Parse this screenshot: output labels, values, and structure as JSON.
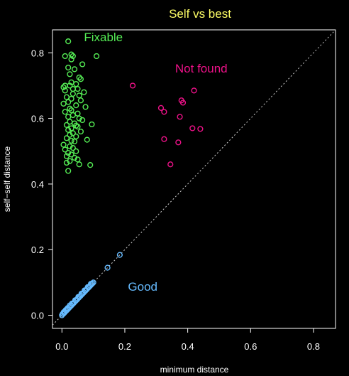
{
  "colors": {
    "background": "#000000",
    "foreground": "#ffffff",
    "title": "#ffff66",
    "fixable": "#55ee55",
    "not_found": "#ee1188",
    "good": "#66bbff",
    "reference_line": "#cccccc"
  },
  "chart_data": {
    "type": "scatter",
    "title": "Self vs best",
    "xlabel": "minimum distance",
    "ylabel": "self−self distance",
    "xlim": [
      -0.03,
      0.87
    ],
    "ylim": [
      -0.04,
      0.87
    ],
    "xticks": [
      0.0,
      0.2,
      0.4,
      0.6,
      0.8
    ],
    "xtick_labels": [
      "0.0",
      "0.2",
      "0.4",
      "0.6",
      "0.8"
    ],
    "yticks": [
      0.0,
      0.2,
      0.4,
      0.6,
      0.8
    ],
    "ytick_labels": [
      "0.0",
      "0.2",
      "0.4",
      "0.6",
      "0.8"
    ],
    "grid": false,
    "marker": "open-circle",
    "reference_line": {
      "type": "y=x",
      "style": "dotted"
    },
    "annotations": [
      {
        "text": "Fixable",
        "x": 0.07,
        "y": 0.835,
        "series": "Fixable"
      },
      {
        "text": "Not found",
        "x": 0.36,
        "y": 0.74,
        "series": "Not found"
      },
      {
        "text": "Good",
        "x": 0.21,
        "y": 0.075,
        "series": "Good"
      }
    ],
    "series": [
      {
        "name": "Fixable",
        "points": [
          [
            0.02,
            0.835
          ],
          [
            0.01,
            0.79
          ],
          [
            0.03,
            0.795
          ],
          [
            0.035,
            0.79
          ],
          [
            0.03,
            0.78
          ],
          [
            0.11,
            0.79
          ],
          [
            0.065,
            0.765
          ],
          [
            0.02,
            0.755
          ],
          [
            0.04,
            0.75
          ],
          [
            0.025,
            0.735
          ],
          [
            0.055,
            0.725
          ],
          [
            0.06,
            0.72
          ],
          [
            0.03,
            0.71
          ],
          [
            0.045,
            0.705
          ],
          [
            0.01,
            0.7
          ],
          [
            0.025,
            0.7
          ],
          [
            0.005,
            0.695
          ],
          [
            0.035,
            0.69
          ],
          [
            0.05,
            0.69
          ],
          [
            0.01,
            0.685
          ],
          [
            0.07,
            0.68
          ],
          [
            0.035,
            0.675
          ],
          [
            0.055,
            0.67
          ],
          [
            0.015,
            0.665
          ],
          [
            0.03,
            0.66
          ],
          [
            0.06,
            0.655
          ],
          [
            0.02,
            0.65
          ],
          [
            0.005,
            0.645
          ],
          [
            0.045,
            0.64
          ],
          [
            0.075,
            0.635
          ],
          [
            0.025,
            0.63
          ],
          [
            0.03,
            0.625
          ],
          [
            0.01,
            0.62
          ],
          [
            0.05,
            0.615
          ],
          [
            0.035,
            0.61
          ],
          [
            0.02,
            0.605
          ],
          [
            0.055,
            0.6
          ],
          [
            0.065,
            0.595
          ],
          [
            0.025,
            0.59
          ],
          [
            0.04,
            0.585
          ],
          [
            0.095,
            0.582
          ],
          [
            0.015,
            0.58
          ],
          [
            0.045,
            0.578
          ],
          [
            0.05,
            0.575
          ],
          [
            0.03,
            0.57
          ],
          [
            0.02,
            0.565
          ],
          [
            0.06,
            0.56
          ],
          [
            0.035,
            0.555
          ],
          [
            0.025,
            0.55
          ],
          [
            0.045,
            0.545
          ],
          [
            0.015,
            0.54
          ],
          [
            0.08,
            0.535
          ],
          [
            0.03,
            0.532
          ],
          [
            0.04,
            0.53
          ],
          [
            0.005,
            0.52
          ],
          [
            0.025,
            0.515
          ],
          [
            0.035,
            0.51
          ],
          [
            0.01,
            0.505
          ],
          [
            0.045,
            0.5
          ],
          [
            0.02,
            0.495
          ],
          [
            0.03,
            0.49
          ],
          [
            0.015,
            0.485
          ],
          [
            0.04,
            0.48
          ],
          [
            0.05,
            0.475
          ],
          [
            0.025,
            0.47
          ],
          [
            0.015,
            0.465
          ],
          [
            0.055,
            0.46
          ],
          [
            0.09,
            0.458
          ],
          [
            0.02,
            0.44
          ]
        ]
      },
      {
        "name": "Not found",
        "points": [
          [
            0.225,
            0.7
          ],
          [
            0.42,
            0.685
          ],
          [
            0.38,
            0.655
          ],
          [
            0.385,
            0.648
          ],
          [
            0.315,
            0.632
          ],
          [
            0.325,
            0.62
          ],
          [
            0.375,
            0.605
          ],
          [
            0.415,
            0.57
          ],
          [
            0.44,
            0.568
          ],
          [
            0.325,
            0.537
          ],
          [
            0.37,
            0.527
          ],
          [
            0.345,
            0.46
          ]
        ]
      },
      {
        "name": "Good",
        "points": [
          [
            0.184,
            0.184
          ],
          [
            0.145,
            0.145
          ],
          [
            0.1,
            0.1
          ],
          [
            0.097,
            0.097
          ],
          [
            0.094,
            0.094
          ],
          [
            0.09,
            0.09
          ],
          [
            0.087,
            0.087
          ],
          [
            0.084,
            0.084
          ],
          [
            0.08,
            0.08
          ],
          [
            0.077,
            0.077
          ],
          [
            0.074,
            0.074
          ],
          [
            0.07,
            0.07
          ],
          [
            0.067,
            0.067
          ],
          [
            0.064,
            0.064
          ],
          [
            0.06,
            0.06
          ],
          [
            0.057,
            0.057
          ],
          [
            0.054,
            0.054
          ],
          [
            0.05,
            0.05
          ],
          [
            0.047,
            0.047
          ],
          [
            0.044,
            0.044
          ],
          [
            0.04,
            0.04
          ],
          [
            0.037,
            0.037
          ],
          [
            0.034,
            0.034
          ],
          [
            0.03,
            0.03
          ],
          [
            0.027,
            0.027
          ],
          [
            0.024,
            0.024
          ],
          [
            0.02,
            0.02
          ],
          [
            0.017,
            0.017
          ],
          [
            0.014,
            0.014
          ],
          [
            0.01,
            0.01
          ],
          [
            0.007,
            0.007
          ],
          [
            0.004,
            0.004
          ],
          [
            0.0,
            0.0
          ],
          [
            0.002,
            0.004
          ],
          [
            0.006,
            0.01
          ],
          [
            0.012,
            0.016
          ],
          [
            0.018,
            0.022
          ],
          [
            0.025,
            0.03
          ],
          [
            0.032,
            0.036
          ],
          [
            0.042,
            0.046
          ],
          [
            0.052,
            0.056
          ],
          [
            0.062,
            0.066
          ],
          [
            0.072,
            0.076
          ],
          [
            0.082,
            0.086
          ],
          [
            0.092,
            0.096
          ]
        ]
      }
    ]
  }
}
